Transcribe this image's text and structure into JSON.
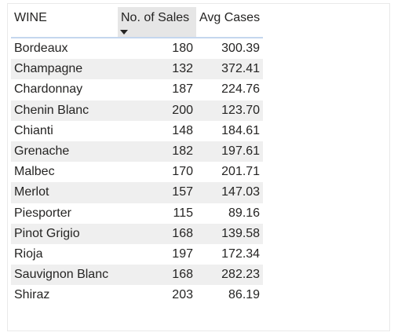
{
  "table": {
    "columns": [
      "WINE",
      "No. of Sales",
      "Avg Cases"
    ],
    "sorted_column": "No. of Sales",
    "sort_direction": "descending",
    "rows": [
      {
        "wine": "Bordeaux",
        "sales": "180",
        "avg": "300.39"
      },
      {
        "wine": "Champagne",
        "sales": "132",
        "avg": "372.41"
      },
      {
        "wine": "Chardonnay",
        "sales": "187",
        "avg": "224.76"
      },
      {
        "wine": "Chenin Blanc",
        "sales": "200",
        "avg": "123.70"
      },
      {
        "wine": "Chianti",
        "sales": "148",
        "avg": "184.61"
      },
      {
        "wine": "Grenache",
        "sales": "182",
        "avg": "197.61"
      },
      {
        "wine": "Malbec",
        "sales": "170",
        "avg": "201.71"
      },
      {
        "wine": "Merlot",
        "sales": "157",
        "avg": "147.03"
      },
      {
        "wine": "Piesporter",
        "sales": "115",
        "avg": "89.16"
      },
      {
        "wine": "Pinot Grigio",
        "sales": "168",
        "avg": "139.58"
      },
      {
        "wine": "Rioja",
        "sales": "197",
        "avg": "172.34"
      },
      {
        "wine": "Sauvignon Blanc",
        "sales": "168",
        "avg": "282.23"
      },
      {
        "wine": "Shiraz",
        "sales": "203",
        "avg": "86.19"
      }
    ]
  },
  "colors": {
    "header_highlight": "#e6e6e6",
    "row_band": "#efefef",
    "header_underline": "#c4d7ee",
    "text": "#252423"
  },
  "icons": {
    "sort": "sort-descending-icon"
  }
}
